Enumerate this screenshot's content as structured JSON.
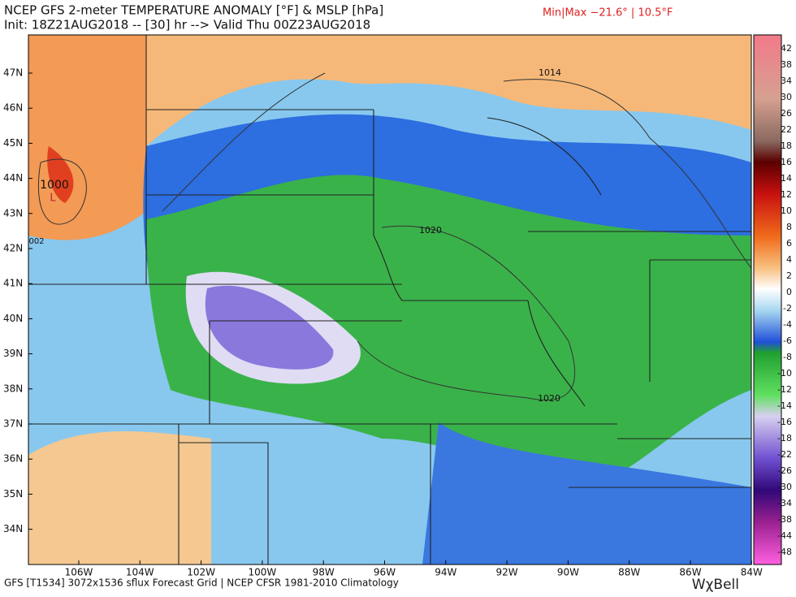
{
  "header": {
    "title": "NCEP GFS 2-meter TEMPERATURE ANOMALY [°F] & MSLP [hPa]",
    "subtitle": "Init: 18Z21AUG2018 -- [30] hr --> Valid Thu 00Z23AUG2018",
    "minmax": "Min|Max −21.6° | 10.5°F"
  },
  "map": {
    "latitude_labels": [
      "47N",
      "46N",
      "45N",
      "44N",
      "43N",
      "42N",
      "41N",
      "40N",
      "39N",
      "38N",
      "37N",
      "36N",
      "35N",
      "34N"
    ],
    "longitude_labels": [
      "106W",
      "104W",
      "102W",
      "100W",
      "98W",
      "96W",
      "94W",
      "92W",
      "90W",
      "88W",
      "86W",
      "84W"
    ],
    "contour_labels": [
      "1014",
      "1000",
      "L",
      "002",
      "1020",
      "1020"
    ]
  },
  "colorbar": {
    "labels": [
      "42",
      "38",
      "34",
      "30",
      "26",
      "22",
      "18",
      "16",
      "14",
      "12",
      "10",
      "8",
      "6",
      "4",
      "2",
      "0",
      "-2",
      "-4",
      "-6",
      "-8",
      "-10",
      "-12",
      "-14",
      "-16",
      "-18",
      "-22",
      "-26",
      "-30",
      "-34",
      "-38",
      "-44",
      "-48"
    ]
  },
  "footer": {
    "source": "GFS [T1534] 3072x1536 sflux Forecast Grid | NCEP CFSR 1981-2010 Climatology",
    "logo": "WχBell"
  }
}
